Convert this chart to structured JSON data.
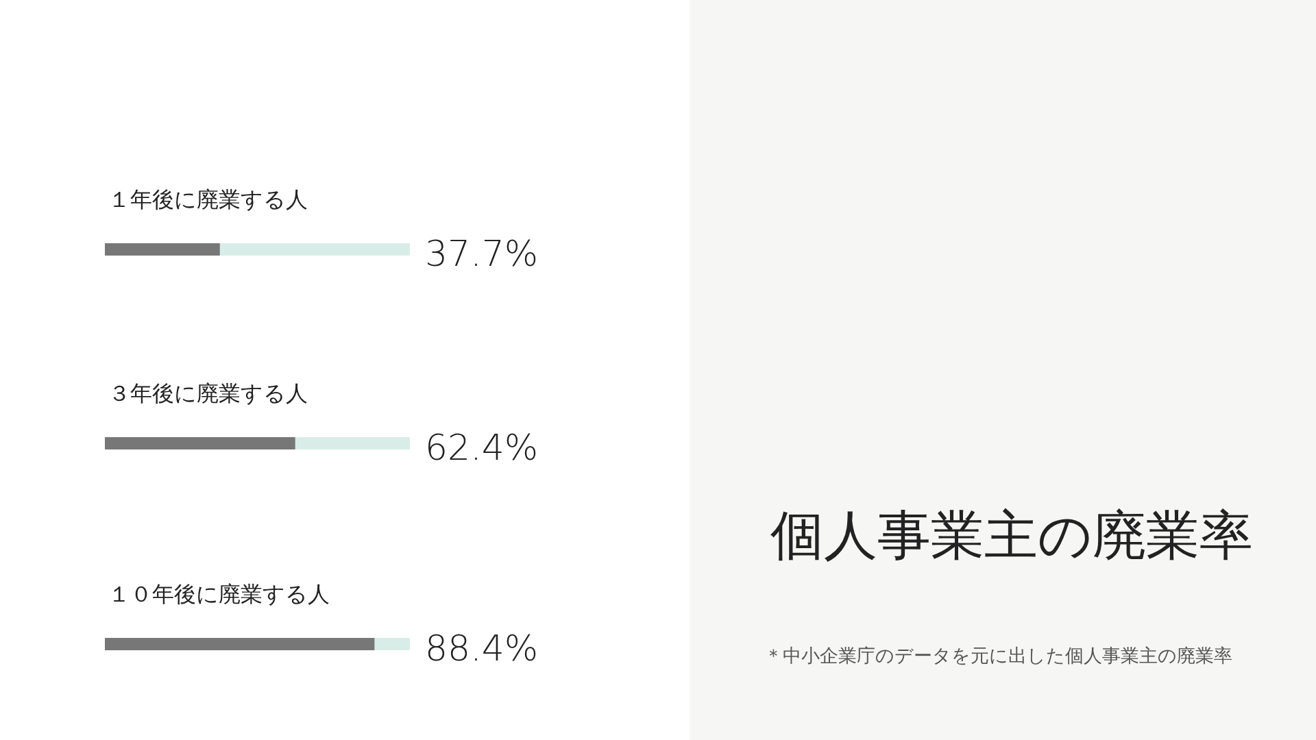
{
  "chart_data": {
    "type": "bar",
    "orientation": "horizontal",
    "title": "個人事業主の廃業率",
    "categories": [
      "１年後に廃業する人",
      "３年後に廃業する人",
      "１０年後に廃業する人"
    ],
    "values": [
      37.7,
      62.4,
      88.4
    ],
    "value_labels": [
      "37.7%",
      "62.4%",
      "88.4%"
    ],
    "color": "#777777",
    "xlim": [
      0,
      100
    ],
    "annotations": [
      "＊中小企業庁のデータを元に出した個人事業主の廃業率"
    ]
  }
}
